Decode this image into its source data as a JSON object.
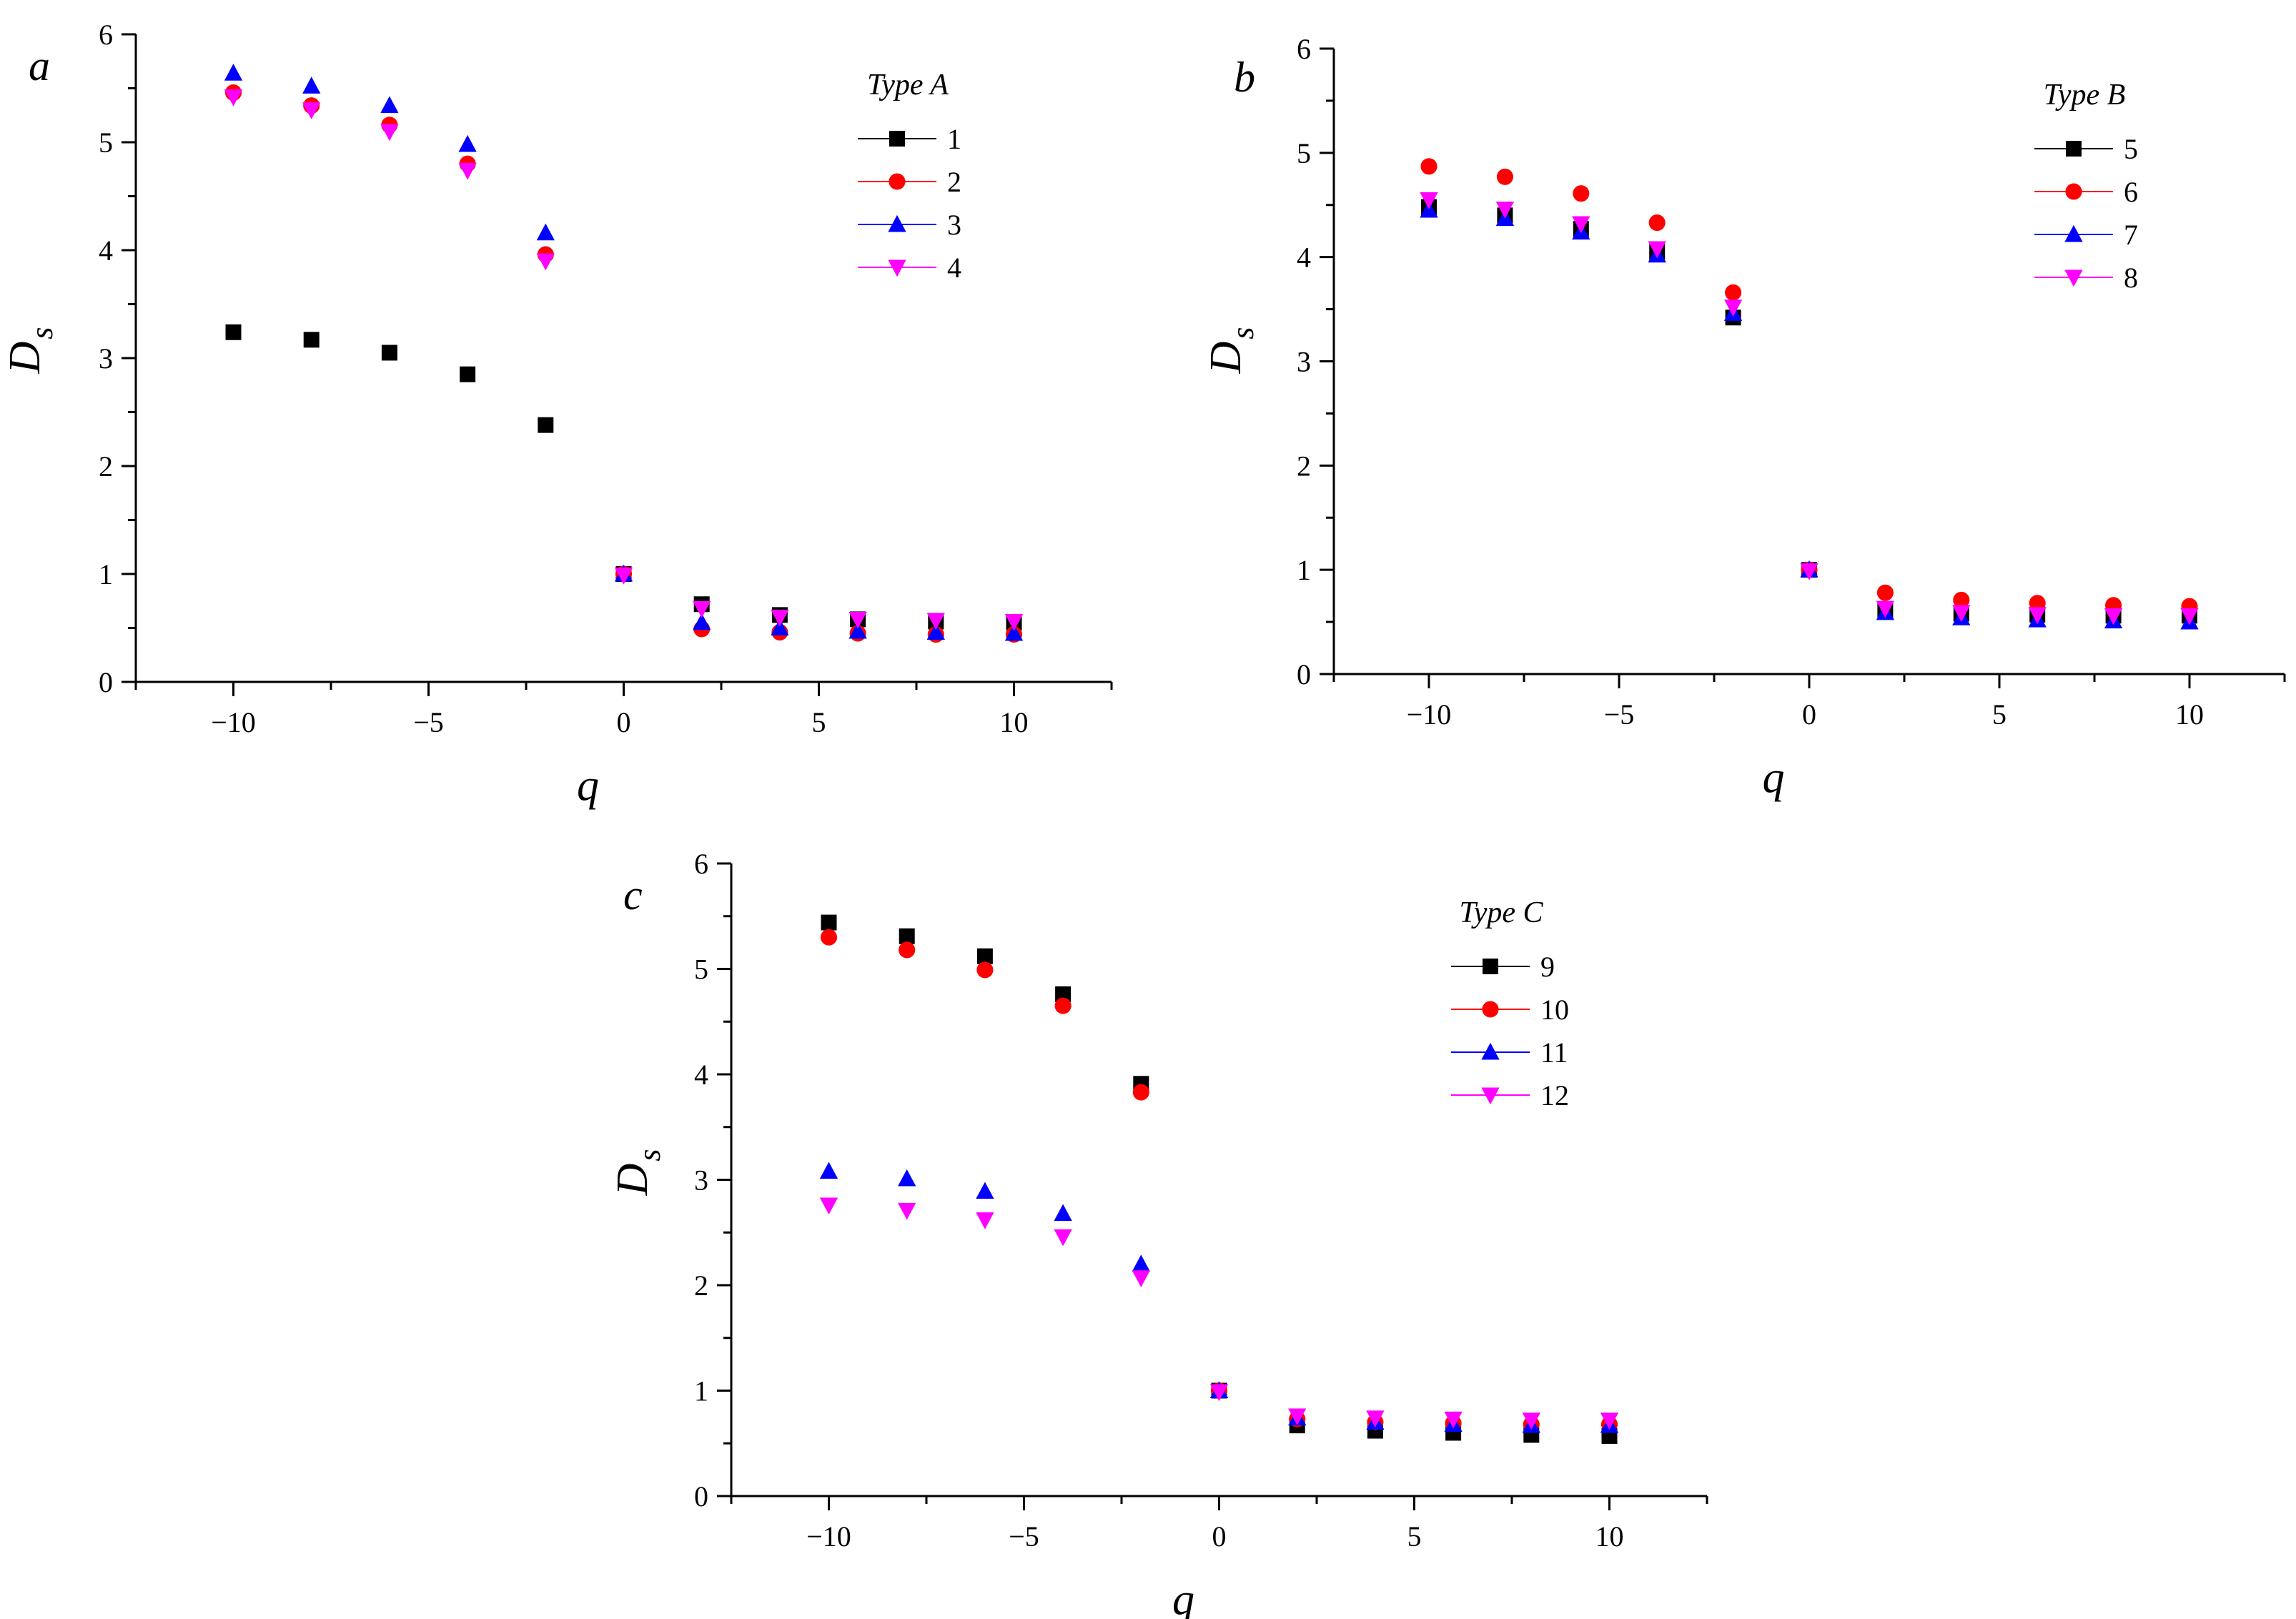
{
  "chart_data": [
    {
      "type": "scatter",
      "panel_label": "a",
      "legend_title": "Type A",
      "xlabel": "q",
      "ylabel_main": "D",
      "ylabel_sub": "s",
      "xlim": [
        -12.5,
        12.5
      ],
      "ylim": [
        0,
        6
      ],
      "xticks": [
        -10,
        -5,
        0,
        5,
        10
      ],
      "yticks": [
        0,
        1,
        2,
        3,
        4,
        5,
        6
      ],
      "x": [
        -10,
        -8,
        -6,
        -4,
        -2,
        0,
        2,
        4,
        6,
        8,
        10
      ],
      "series": [
        {
          "name": "1",
          "marker": "square",
          "color": "#000000",
          "values": [
            3.24,
            3.17,
            3.05,
            2.85,
            2.38,
            1.0,
            0.72,
            0.62,
            0.58,
            0.56,
            0.55
          ]
        },
        {
          "name": "2",
          "marker": "circle",
          "color": "#ff0000",
          "values": [
            5.46,
            5.34,
            5.16,
            4.8,
            3.96,
            1.0,
            0.49,
            0.46,
            0.45,
            0.44,
            0.44
          ]
        },
        {
          "name": "3",
          "marker": "triangle-up",
          "color": "#0000ff",
          "values": [
            5.64,
            5.52,
            5.34,
            4.98,
            4.16,
            1.0,
            0.55,
            0.5,
            0.47,
            0.46,
            0.45
          ]
        },
        {
          "name": "4",
          "marker": "triangle-down",
          "color": "#ff00ff",
          "values": [
            5.42,
            5.3,
            5.1,
            4.74,
            3.9,
            0.99,
            0.68,
            0.6,
            0.58,
            0.57,
            0.56
          ]
        }
      ]
    },
    {
      "type": "scatter",
      "panel_label": "b",
      "legend_title": "Type B",
      "xlabel": "q",
      "ylabel_main": "D",
      "ylabel_sub": "s",
      "xlim": [
        -12.5,
        12.5
      ],
      "ylim": [
        0,
        6
      ],
      "xticks": [
        -10,
        -5,
        0,
        5,
        10
      ],
      "yticks": [
        0,
        1,
        2,
        3,
        4,
        5,
        6
      ],
      "x": [
        -10,
        -8,
        -6,
        -4,
        -2,
        0,
        2,
        4,
        6,
        8,
        10
      ],
      "series": [
        {
          "name": "5",
          "marker": "square",
          "color": "#000000",
          "values": [
            4.48,
            4.4,
            4.27,
            4.05,
            3.42,
            1.0,
            0.62,
            0.58,
            0.57,
            0.56,
            0.56
          ]
        },
        {
          "name": "6",
          "marker": "circle",
          "color": "#ff0000",
          "values": [
            4.87,
            4.77,
            4.61,
            4.33,
            3.66,
            1.0,
            0.78,
            0.71,
            0.68,
            0.66,
            0.65
          ]
        },
        {
          "name": "7",
          "marker": "triangle-up",
          "color": "#0000ff",
          "values": [
            4.45,
            4.37,
            4.24,
            4.02,
            3.46,
            1.0,
            0.59,
            0.54,
            0.52,
            0.51,
            0.5
          ]
        },
        {
          "name": "8",
          "marker": "triangle-down",
          "color": "#ff00ff",
          "values": [
            4.55,
            4.46,
            4.32,
            4.08,
            3.52,
            0.99,
            0.63,
            0.59,
            0.57,
            0.56,
            0.56
          ]
        }
      ]
    },
    {
      "type": "scatter",
      "panel_label": "c",
      "legend_title": "Type C",
      "xlabel": "q",
      "ylabel_main": "D",
      "ylabel_sub": "s",
      "xlim": [
        -12.5,
        12.5
      ],
      "ylim": [
        0,
        6
      ],
      "xticks": [
        -10,
        -5,
        0,
        5,
        10
      ],
      "yticks": [
        0,
        1,
        2,
        3,
        4,
        5,
        6
      ],
      "x": [
        -10,
        -8,
        -6,
        -4,
        -2,
        0,
        2,
        4,
        6,
        8,
        10
      ],
      "series": [
        {
          "name": "9",
          "marker": "square",
          "color": "#000000",
          "values": [
            5.44,
            5.31,
            5.12,
            4.76,
            3.91,
            1.0,
            0.67,
            0.62,
            0.6,
            0.58,
            0.57
          ]
        },
        {
          "name": "10",
          "marker": "circle",
          "color": "#ff0000",
          "values": [
            5.3,
            5.18,
            4.99,
            4.65,
            3.83,
            1.0,
            0.73,
            0.7,
            0.69,
            0.68,
            0.68
          ]
        },
        {
          "name": "11",
          "marker": "triangle-up",
          "color": "#0000ff",
          "values": [
            3.08,
            3.01,
            2.89,
            2.68,
            2.2,
            1.0,
            0.74,
            0.7,
            0.68,
            0.67,
            0.67
          ]
        },
        {
          "name": "12",
          "marker": "triangle-down",
          "color": "#ff00ff",
          "values": [
            2.76,
            2.71,
            2.62,
            2.46,
            2.07,
            0.99,
            0.76,
            0.74,
            0.73,
            0.72,
            0.72
          ]
        }
      ]
    }
  ]
}
